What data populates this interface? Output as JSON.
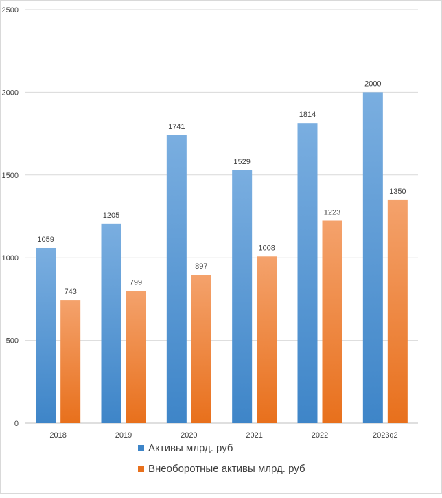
{
  "chart_data": {
    "type": "bar",
    "title": "",
    "xlabel": "",
    "ylabel": "",
    "categories": [
      "2018",
      "2019",
      "2020",
      "2021",
      "2022",
      "2023q2"
    ],
    "series": [
      {
        "name": "Активы млрд. руб",
        "values": [
          1059,
          1205,
          1741,
          1529,
          1814,
          2000
        ],
        "color_top": "#7aaee0",
        "color_bottom": "#3e85c8"
      },
      {
        "name": "Внеоборотные активы млрд. руб",
        "values": [
          743,
          799,
          897,
          1008,
          1223,
          1350
        ],
        "color_top": "#f4a26c",
        "color_bottom": "#e8701c"
      }
    ],
    "ylim": [
      0,
      2500
    ],
    "yticks": [
      0,
      500,
      1000,
      1500,
      2000,
      2500
    ],
    "grid": true,
    "legend_position": "bottom"
  }
}
